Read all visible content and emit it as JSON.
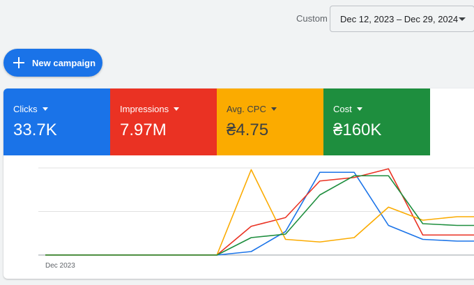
{
  "date_range": {
    "mode_label": "Custom",
    "value": "Dec 12, 2023 – Dec 29, 2024"
  },
  "new_campaign": {
    "label": "New campaign",
    "icon": "plus-icon"
  },
  "metrics": [
    {
      "label": "Clicks",
      "value": "33.7K",
      "color": "#1a73e8"
    },
    {
      "label": "Impressions",
      "value": "7.97M",
      "color": "#ea3223"
    },
    {
      "label": "Avg. CPC",
      "value": "₴4.75",
      "color": "#fbab00"
    },
    {
      "label": "Cost",
      "value": "₴160K",
      "color": "#1e8e3e"
    }
  ],
  "chart_data": {
    "type": "line",
    "x": [
      0,
      1,
      2,
      3,
      4,
      5,
      6,
      7,
      8,
      9,
      10,
      11,
      12,
      13
    ],
    "x_tick_labels": [
      {
        "x": 0,
        "label": "Dec 2023"
      }
    ],
    "ylim": [
      0,
      1
    ],
    "grid": true,
    "series": [
      {
        "color": "#1a73e8",
        "values": [
          0,
          0,
          0,
          0,
          0,
          0,
          0.04,
          0.27,
          0.95,
          0.95,
          0.34,
          0.18,
          0.16,
          0.16
        ]
      },
      {
        "color": "#ea3223",
        "values": [
          0,
          0,
          0,
          0,
          0,
          0,
          0.33,
          0.43,
          0.85,
          0.89,
          0.99,
          0.23,
          0.23,
          0.23
        ]
      },
      {
        "color": "#fbab00",
        "values": [
          0,
          0,
          0,
          0,
          0,
          0,
          0.98,
          0.18,
          0.15,
          0.2,
          0.55,
          0.4,
          0.44,
          0.44
        ]
      },
      {
        "color": "#1e8e3e",
        "values": [
          0,
          0,
          0,
          0,
          0,
          0,
          0.2,
          0.24,
          0.69,
          0.91,
          0.91,
          0.36,
          0.34,
          0.34
        ]
      }
    ]
  }
}
